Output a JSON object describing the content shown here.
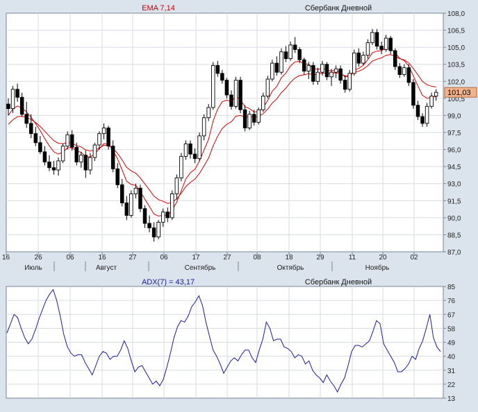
{
  "chart_data": [
    {
      "type": "candlestick",
      "indicator_label": "EMA 7,14",
      "instrument_label": "Сбербанк Дневной",
      "ylim": [
        87.0,
        108.0
      ],
      "y_ticks": [
        "108,0",
        "106,5",
        "105,0",
        "103,5",
        "102,0",
        "100,5",
        "99,0",
        "97,5",
        "96,0",
        "94,5",
        "93,0",
        "91,5",
        "90,0",
        "88,5",
        "87,0"
      ],
      "last_price_label": "101,03",
      "last_price": 101.03,
      "x_day_labels": [
        "16",
        "26",
        "06",
        "16",
        "27",
        "06",
        "17",
        "27",
        "08",
        "18",
        "29",
        "11",
        "20",
        "02"
      ],
      "x_month_labels": [
        "Июль",
        "Август",
        "Сентябрь",
        "Октябрь",
        "Ноябрь"
      ],
      "grid": true,
      "colors": {
        "up": "#ffffff",
        "down": "#000000",
        "ema_fast": "#d40000",
        "ema_slow": "#d40000",
        "price_tag": "#f2b38a"
      },
      "candles": [
        [
          100.0,
          100.5,
          99.0,
          99.6
        ],
        [
          99.6,
          101.6,
          99.2,
          101.3
        ],
        [
          101.3,
          101.8,
          100.2,
          100.6
        ],
        [
          100.6,
          101.0,
          98.9,
          99.1
        ],
        [
          99.1,
          100.2,
          97.9,
          98.3
        ],
        [
          98.3,
          99.1,
          97.0,
          97.4
        ],
        [
          97.4,
          98.0,
          96.3,
          96.6
        ],
        [
          96.6,
          97.2,
          95.6,
          95.8
        ],
        [
          95.8,
          96.3,
          94.6,
          94.9
        ],
        [
          94.9,
          95.5,
          94.1,
          94.4
        ],
        [
          94.4,
          95.0,
          93.8,
          94.2
        ],
        [
          94.2,
          95.3,
          93.7,
          95.0
        ],
        [
          95.0,
          96.5,
          94.8,
          96.3
        ],
        [
          96.3,
          97.6,
          96.0,
          97.3
        ],
        [
          97.3,
          97.7,
          95.9,
          96.2
        ],
        [
          96.2,
          96.6,
          94.6,
          94.9
        ],
        [
          94.9,
          95.8,
          94.4,
          95.5
        ],
        [
          95.5,
          95.9,
          93.5,
          94.2
        ],
        [
          94.2,
          95.7,
          93.8,
          95.3
        ],
        [
          95.3,
          96.6,
          95.0,
          96.4
        ],
        [
          96.4,
          97.6,
          96.0,
          97.4
        ],
        [
          97.4,
          98.3,
          96.9,
          97.9
        ],
        [
          97.9,
          98.1,
          96.0,
          96.3
        ],
        [
          96.3,
          96.8,
          94.0,
          94.3
        ],
        [
          94.3,
          94.8,
          92.6,
          92.9
        ],
        [
          92.9,
          93.4,
          91.0,
          91.3
        ],
        [
          91.3,
          91.9,
          89.8,
          90.2
        ],
        [
          90.2,
          92.4,
          90.0,
          92.1
        ],
        [
          92.1,
          93.0,
          91.7,
          92.6
        ],
        [
          92.6,
          92.9,
          90.5,
          90.8
        ],
        [
          90.8,
          91.1,
          89.1,
          89.5
        ],
        [
          89.5,
          90.2,
          88.7,
          89.1
        ],
        [
          89.1,
          89.6,
          87.9,
          88.3
        ],
        [
          88.3,
          89.8,
          88.1,
          89.6
        ],
        [
          89.6,
          90.8,
          89.2,
          90.5
        ],
        [
          90.5,
          90.9,
          89.6,
          90.0
        ],
        [
          90.0,
          92.4,
          89.8,
          92.1
        ],
        [
          92.1,
          93.8,
          91.6,
          93.5
        ],
        [
          93.5,
          95.7,
          93.2,
          95.4
        ],
        [
          95.4,
          96.8,
          95.1,
          96.5
        ],
        [
          96.5,
          96.8,
          95.2,
          95.6
        ],
        [
          95.6,
          96.1,
          94.8,
          95.2
        ],
        [
          95.2,
          97.5,
          95.0,
          97.2
        ],
        [
          97.2,
          99.1,
          96.8,
          98.8
        ],
        [
          98.8,
          100.0,
          98.5,
          99.7
        ],
        [
          99.7,
          103.7,
          99.5,
          103.4
        ],
        [
          103.4,
          103.8,
          102.4,
          102.7
        ],
        [
          102.7,
          103.0,
          101.8,
          102.1
        ],
        [
          102.1,
          102.3,
          100.5,
          100.8
        ],
        [
          100.8,
          101.2,
          99.5,
          99.8
        ],
        [
          99.8,
          102.4,
          99.6,
          102.1
        ],
        [
          102.1,
          102.4,
          99.2,
          99.5
        ],
        [
          99.5,
          99.9,
          97.6,
          97.9
        ],
        [
          97.9,
          99.4,
          97.7,
          99.1
        ],
        [
          99.1,
          99.5,
          98.1,
          98.4
        ],
        [
          98.4,
          99.7,
          98.2,
          99.5
        ],
        [
          99.5,
          101.0,
          99.3,
          100.7
        ],
        [
          100.7,
          102.5,
          100.5,
          102.2
        ],
        [
          102.2,
          103.9,
          102.0,
          103.6
        ],
        [
          103.6,
          104.2,
          102.5,
          102.8
        ],
        [
          102.8,
          104.9,
          102.6,
          104.6
        ],
        [
          104.6,
          105.1,
          103.7,
          104.0
        ],
        [
          104.0,
          105.5,
          103.8,
          105.2
        ],
        [
          105.2,
          105.9,
          104.5,
          104.8
        ],
        [
          104.8,
          105.0,
          103.6,
          103.9
        ],
        [
          103.9,
          104.1,
          102.6,
          102.9
        ],
        [
          102.9,
          103.7,
          102.2,
          103.4
        ],
        [
          103.4,
          103.7,
          101.7,
          102.0
        ],
        [
          102.0,
          103.2,
          101.7,
          102.8
        ],
        [
          102.8,
          103.8,
          102.5,
          103.5
        ],
        [
          103.5,
          103.7,
          102.1,
          102.4
        ],
        [
          102.4,
          103.1,
          101.6,
          102.8
        ],
        [
          102.8,
          103.4,
          102.3,
          103.1
        ],
        [
          103.1,
          103.4,
          101.8,
          102.1
        ],
        [
          102.1,
          102.5,
          101.0,
          101.3
        ],
        [
          101.3,
          103.0,
          101.1,
          102.7
        ],
        [
          102.7,
          104.8,
          102.5,
          104.5
        ],
        [
          104.5,
          104.9,
          103.3,
          103.6
        ],
        [
          103.6,
          104.6,
          103.4,
          104.3
        ],
        [
          104.3,
          105.7,
          104.0,
          105.4
        ],
        [
          105.4,
          106.6,
          105.2,
          106.3
        ],
        [
          106.3,
          106.6,
          104.8,
          105.1
        ],
        [
          105.1,
          105.5,
          104.4,
          104.8
        ],
        [
          104.8,
          106.1,
          104.6,
          105.8
        ],
        [
          105.8,
          106.0,
          104.4,
          104.7
        ],
        [
          104.7,
          104.9,
          103.0,
          103.3
        ],
        [
          103.3,
          103.6,
          102.3,
          102.6
        ],
        [
          102.6,
          103.5,
          102.4,
          103.2
        ],
        [
          103.2,
          103.5,
          101.6,
          101.9
        ],
        [
          101.9,
          102.2,
          99.6,
          99.9
        ],
        [
          99.9,
          100.3,
          98.6,
          98.9
        ],
        [
          98.9,
          99.2,
          98.0,
          98.3
        ],
        [
          98.3,
          100.1,
          98.0,
          99.8
        ],
        [
          99.8,
          101.0,
          99.6,
          100.7
        ],
        [
          100.7,
          101.3,
          100.3,
          101.03
        ]
      ]
    },
    {
      "type": "line",
      "indicator_label": "ADX(7) = 43,17",
      "instrument_label": "Сбербанк Дневной",
      "ylim": [
        13,
        85
      ],
      "y_ticks": [
        "85",
        "76",
        "67",
        "58",
        "49",
        "40",
        "31",
        "22",
        "13"
      ],
      "grid": true,
      "colors": {
        "line": "#1a1a9c"
      },
      "values": [
        55,
        61,
        67,
        65,
        58,
        52,
        48,
        51,
        57,
        64,
        70,
        76,
        80,
        83,
        76,
        66,
        54,
        46,
        42,
        40,
        41,
        41,
        36,
        32,
        28,
        34,
        40,
        43,
        42,
        38,
        40,
        40,
        44,
        50,
        45,
        37,
        30,
        33,
        34,
        30,
        26,
        22,
        24,
        21,
        25,
        33,
        42,
        52,
        59,
        63,
        62,
        66,
        72,
        75,
        79,
        73,
        62,
        53,
        44,
        40,
        35,
        29,
        33,
        37,
        39,
        37,
        41,
        44,
        44,
        39,
        36,
        44,
        51,
        62,
        58,
        50,
        51,
        51,
        46,
        45,
        43,
        39,
        41,
        40,
        35,
        37,
        31,
        28,
        26,
        23,
        28,
        24,
        21,
        17,
        22,
        26,
        34,
        43,
        47,
        47,
        46,
        48,
        50,
        56,
        63,
        61,
        48,
        44,
        40,
        36,
        30,
        30,
        32,
        35,
        40,
        38,
        45,
        50,
        58,
        67,
        52,
        46,
        43
      ]
    }
  ]
}
